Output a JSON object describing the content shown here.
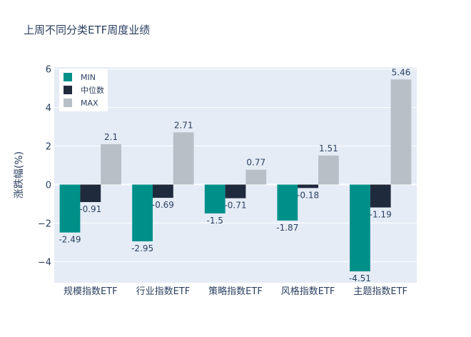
{
  "chart_data": {
    "type": "bar",
    "title": "上周不同分类ETF周度业绩",
    "ylabel": "涨跌幅(%)",
    "xlabel": "",
    "ylim": [
      -5.1,
      6.1
    ],
    "yticks": [
      -4,
      -2,
      0,
      2,
      4,
      6
    ],
    "ytick_labels": [
      "−4",
      "−2",
      "0",
      "2",
      "4",
      "6"
    ],
    "grid": true,
    "legend_position": "top-left",
    "categories": [
      "规模指数ETF",
      "行业指数ETF",
      "策略指数ETF",
      "风格指数ETF",
      "主题指数ETF"
    ],
    "series": [
      {
        "name": "MIN",
        "color": "#00908a",
        "values": [
          -2.49,
          -2.95,
          -1.5,
          -1.87,
          -4.51
        ],
        "labels": [
          "-2.49",
          "-2.95",
          "-1.5",
          "-1.87",
          "-4.51"
        ]
      },
      {
        "name": "中位数",
        "color": "#1f2a3d",
        "values": [
          -0.91,
          -0.69,
          -0.71,
          -0.18,
          -1.19
        ],
        "labels": [
          "-0.91",
          "-0.69",
          "-0.71",
          "-0.18",
          "-1.19"
        ]
      },
      {
        "name": "MAX",
        "color": "#b8bfc6",
        "values": [
          2.1,
          2.71,
          0.77,
          1.51,
          5.46
        ],
        "labels": [
          "2.1",
          "2.71",
          "0.77",
          "1.51",
          "5.46"
        ]
      }
    ],
    "colors": {
      "plot_bg": "#e5ecf6",
      "grid": "#ffffff",
      "text": "#2a3f5f",
      "legend_bg": "#ffffff"
    }
  }
}
